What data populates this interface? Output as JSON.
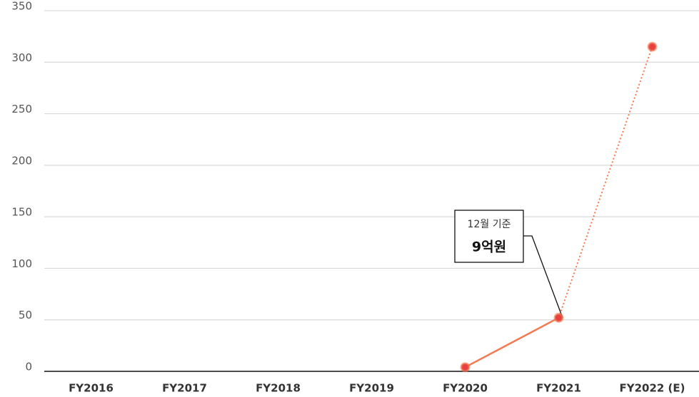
{
  "chart_data": {
    "type": "line",
    "categories": [
      "FY2016",
      "FY2017",
      "FY2018",
      "FY2019",
      "FY2020",
      "FY2021",
      "FY2022 (E)"
    ],
    "series": [
      {
        "color": "#f47a52",
        "marker_color": "#e8403f",
        "values": [
          null,
          null,
          null,
          null,
          4,
          52,
          315
        ]
      }
    ],
    "dotted_last_segment": true,
    "ylim": [
      0,
      350
    ],
    "yticks": [
      0,
      50,
      100,
      150,
      200,
      250,
      300,
      350
    ],
    "grid": true,
    "annotation": {
      "text": "12월 기준",
      "value_text": "9억원"
    }
  }
}
